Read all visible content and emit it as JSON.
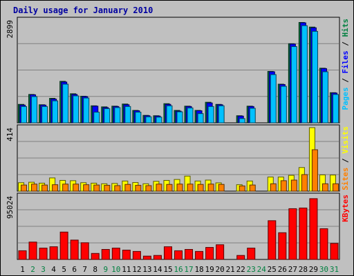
{
  "chart_data": {
    "type": "bar",
    "title": "Daily usage for January 2010",
    "x": [
      "1",
      "2",
      "3",
      "4",
      "5",
      "6",
      "7",
      "8",
      "9",
      "10",
      "11",
      "12",
      "13",
      "14",
      "15",
      "16",
      "17",
      "18",
      "19",
      "20",
      "21",
      "22",
      "23",
      "24",
      "25",
      "26",
      "27",
      "28",
      "29",
      "30",
      "31"
    ],
    "weekend_days": [
      "2",
      "3",
      "9",
      "10",
      "16",
      "17",
      "23",
      "24",
      "30",
      "31"
    ],
    "panels": [
      {
        "id": "hits-files-pages",
        "max_label": "2899",
        "ylim": [
          0,
          2899
        ],
        "side_label_parts": [
          {
            "text": "Pages",
            "color": "#00c0ff"
          },
          {
            "text": " / ",
            "color": "#000000"
          },
          {
            "text": "Files",
            "color": "#0000ff"
          },
          {
            "text": " / ",
            "color": "#000000"
          },
          {
            "text": "Hits",
            "color": "#008040"
          }
        ],
        "series": [
          {
            "name": "Hits",
            "color": "#008040",
            "values": [
              520,
              800,
              510,
              690,
              1170,
              820,
              750,
              480,
              450,
              470,
              530,
              350,
              210,
              200,
              540,
              350,
              470,
              350,
              580,
              520,
              0,
              200,
              470,
              0,
              1450,
              1090,
              2230,
              2830,
              2700,
              1540,
              850
            ]
          },
          {
            "name": "Files",
            "color": "#0000ff",
            "values": [
              500,
              790,
              500,
              670,
              1150,
              800,
              740,
              470,
              430,
              460,
              510,
              340,
              200,
              190,
              520,
              330,
              460,
              340,
              560,
              510,
              0,
              190,
              460,
              0,
              1440,
              1080,
              2220,
              2820,
              2680,
              1530,
              840
            ]
          },
          {
            "name": "Pages",
            "color": "#00c0ff",
            "values": [
              460,
              740,
              460,
              620,
              1090,
              760,
              700,
              300,
              400,
              430,
              460,
              300,
              170,
              160,
              480,
              310,
              420,
              260,
              460,
              480,
              0,
              120,
              410,
              0,
              1360,
              1030,
              2150,
              2740,
              2580,
              1440,
              800
            ]
          }
        ]
      },
      {
        "id": "visits-sites",
        "max_label": "414",
        "ylim": [
          0,
          414
        ],
        "side_label_parts": [
          {
            "text": "Sites",
            "color": "#ff8000"
          },
          {
            "text": " / ",
            "color": "#000000"
          },
          {
            "text": "Visits",
            "color": "#ffff00"
          }
        ],
        "series": [
          {
            "name": "Visits",
            "color": "#ffff00",
            "values": [
              55,
              58,
              52,
              86,
              70,
              68,
              55,
              52,
              48,
              50,
              66,
              56,
              48,
              64,
              70,
              76,
              98,
              66,
              72,
              54,
              0,
              42,
              66,
              0,
              92,
              92,
              103,
              154,
              414,
              106,
              105
            ]
          },
          {
            "name": "Sites",
            "color": "#ff8000",
            "values": [
              40,
              46,
              40,
              42,
              46,
              46,
              42,
              40,
              38,
              36,
              44,
              38,
              36,
              46,
              44,
              46,
              46,
              44,
              46,
              44,
              0,
              34,
              40,
              0,
              48,
              68,
              72,
              108,
              270,
              48,
              48
            ]
          }
        ]
      },
      {
        "id": "kbytes",
        "max_label": "95024",
        "ylim": [
          0,
          95024
        ],
        "side_label_parts": [
          {
            "text": "KBytes",
            "color": "#ff0000"
          }
        ],
        "series": [
          {
            "name": "KBytes",
            "color": "#ff0000",
            "values": [
              13000,
              26000,
              17000,
              19000,
              41000,
              29000,
              25000,
              9000,
              15000,
              17000,
              14000,
              12000,
              5000,
              6000,
              19000,
              13000,
              15000,
              12000,
              18000,
              22000,
              0,
              6000,
              17000,
              0,
              58000,
              40000,
              76000,
              77000,
              91000,
              46000,
              24000
            ]
          }
        ]
      }
    ]
  }
}
